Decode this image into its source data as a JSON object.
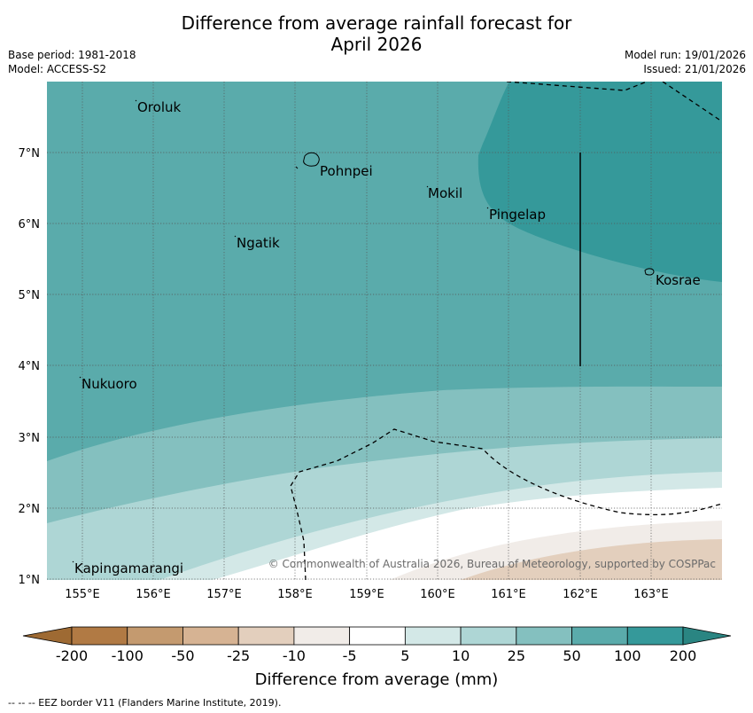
{
  "title_line1": "Difference from average rainfall forecast for",
  "title_line2": "April 2026",
  "base_period": "Base period: 1981-2018",
  "model": "Model: ACCESS-S2",
  "model_run": "Model run: 19/01/2026",
  "issued": "Issued: 21/01/2026",
  "lat_labels": [
    "7°N",
    "6°N",
    "5°N",
    "4°N",
    "3°N",
    "2°N",
    "1°N"
  ],
  "lon_labels": [
    "155°E",
    "156°E",
    "157°E",
    "158°E",
    "159°E",
    "160°E",
    "161°E",
    "162°E",
    "163°E"
  ],
  "places": {
    "oroluk": "Oroluk",
    "pohnpei": "Pohnpei",
    "mokil": "Mokil",
    "pingelap": "Pingelap",
    "ngatik": "Ngatik",
    "kosrae": "Kosrae",
    "nukuoro": "Nukuoro",
    "kapingamarangi": "Kapingamarangi"
  },
  "copyright": "© Commonwealth of Australia 2026, Bureau of Meteorology, supported by COSPPac",
  "colorbar": {
    "ticks": [
      "-200",
      "-100",
      "-50",
      "-25",
      "-10",
      "-5",
      "5",
      "10",
      "25",
      "50",
      "100",
      "200"
    ],
    "colors": [
      "#9e6a33",
      "#b17a44",
      "#c49a6f",
      "#d6b393",
      "#e3cfbd",
      "#f1ece8",
      "#ffffff",
      "#d3e8e7",
      "#aed6d5",
      "#84c0bf",
      "#5aabab",
      "#35999a",
      "#2a8582"
    ],
    "label": "Difference from average (mm)"
  },
  "footnote": "-- -- -- EEZ border V11 (Flanders Marine Institute, 2019)."
}
